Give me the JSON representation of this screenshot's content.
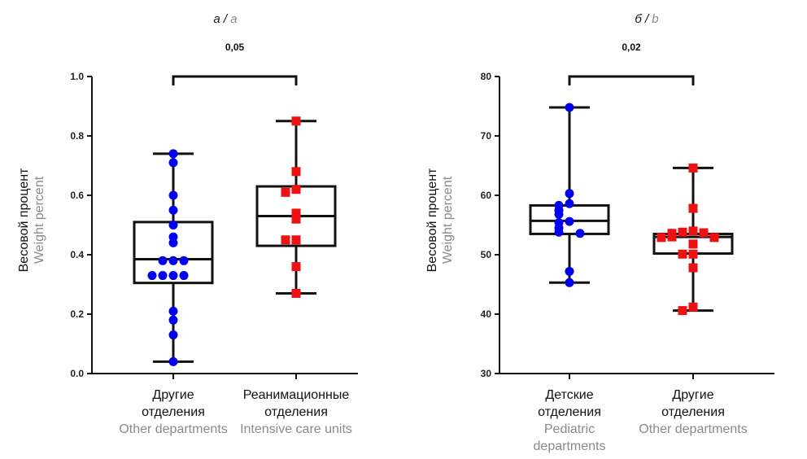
{
  "chart_data": [
    {
      "type": "box",
      "title_ru": "а",
      "title_sep": " / ",
      "title_en": "a",
      "ylabel_ru": "Весовой процент",
      "ylabel_en": "Weight percent",
      "ylim": [
        0,
        1.0
      ],
      "yticks": [
        "0.0",
        "0.2",
        "0.4",
        "0.6",
        "0.8",
        "1.0"
      ],
      "p_value": "0,05",
      "categories": [
        {
          "label_ru": [
            "Другие",
            "отделения"
          ],
          "label_en": [
            "Other departments"
          ],
          "marker": "circle",
          "color": "#0000ee",
          "box": {
            "min": 0.04,
            "q1": 0.305,
            "median": 0.385,
            "q3": 0.51,
            "max": 0.74
          },
          "points": [
            0.74,
            0.71,
            0.6,
            0.55,
            0.5,
            0.46,
            0.44,
            0.38,
            0.38,
            0.38,
            0.33,
            0.33,
            0.33,
            0.33,
            0.21,
            0.18,
            0.13,
            0.04
          ]
        },
        {
          "label_ru": [
            "Реанимационные",
            "отделения"
          ],
          "label_en": [
            "Intensive care units"
          ],
          "marker": "square",
          "color": "#ee1111",
          "box": {
            "min": 0.27,
            "q1": 0.43,
            "median": 0.53,
            "q3": 0.63,
            "max": 0.85
          },
          "points": [
            0.85,
            0.68,
            0.62,
            0.61,
            0.54,
            0.52,
            0.45,
            0.45,
            0.36,
            0.27
          ]
        }
      ]
    },
    {
      "type": "box",
      "title_ru": "б",
      "title_sep": " / ",
      "title_en": "b",
      "ylabel_ru": "Весовой процент",
      "ylabel_en": "Weight percent",
      "ylim": [
        30,
        80
      ],
      "yticks": [
        "30",
        "40",
        "50",
        "60",
        "70",
        "80"
      ],
      "p_value": "0,02",
      "categories": [
        {
          "label_ru": [
            "Детские",
            "отделения"
          ],
          "label_en": [
            "Pediatric",
            "departments"
          ],
          "marker": "circle",
          "color": "#0000ee",
          "box": {
            "min": 45.3,
            "q1": 53.5,
            "median": 55.7,
            "q3": 58.3,
            "max": 74.8
          },
          "points": [
            74.8,
            60.3,
            58.6,
            58.3,
            57.5,
            56.8,
            55.6,
            55.4,
            54.5,
            53.8,
            53.6,
            47.2,
            45.3
          ]
        },
        {
          "label_ru": [
            "Другие",
            "отделения"
          ],
          "label_en": [
            "Other departments"
          ],
          "marker": "square",
          "color": "#ee1111",
          "box": {
            "min": 40.6,
            "q1": 50.2,
            "median": 53.0,
            "q3": 53.5,
            "max": 64.6
          },
          "points": [
            64.6,
            57.8,
            54.0,
            53.8,
            53.7,
            53.6,
            53.0,
            52.9,
            52.9,
            51.8,
            50.1,
            50.1,
            47.8,
            41.2,
            40.6
          ]
        }
      ]
    }
  ]
}
